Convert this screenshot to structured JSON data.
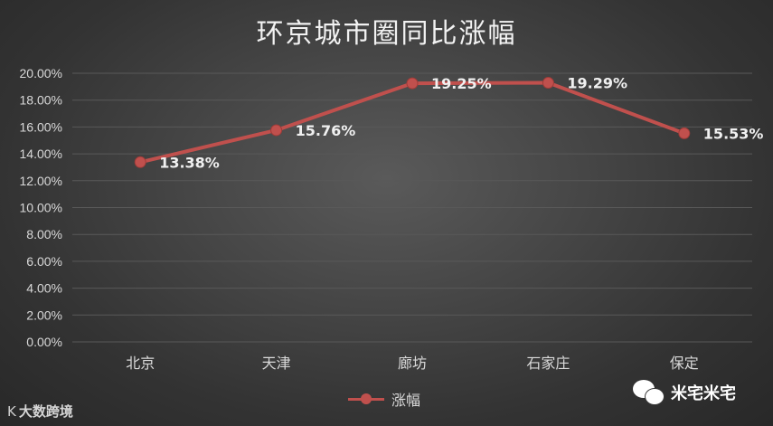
{
  "chart_data": {
    "type": "line",
    "title": "环京城市圈同比涨幅",
    "categories": [
      "北京",
      "天津",
      "廊坊",
      "石家庄",
      "保定"
    ],
    "series": [
      {
        "name": "涨幅",
        "values": [
          13.38,
          15.76,
          19.25,
          19.29,
          15.53
        ],
        "labels": [
          "13.38%",
          "15.76%",
          "19.25%",
          "19.29%",
          "15.53%"
        ],
        "color": "#c0504d"
      }
    ],
    "ylim": [
      0,
      20
    ],
    "yticks": [
      "0.00%",
      "2.00%",
      "4.00%",
      "6.00%",
      "8.00%",
      "10.00%",
      "12.00%",
      "14.00%",
      "16.00%",
      "18.00%",
      "20.00%"
    ],
    "xlabel": "",
    "ylabel": "",
    "grid": true,
    "legend": "bottom"
  },
  "watermarks": {
    "left_mark": "K",
    "left_text": "大数跨境",
    "right_text": "米宅米宅"
  },
  "colors": {
    "background": "#3e3e3e",
    "gridline": "#595959",
    "series": "#c0504d",
    "text": "#d9d9d9"
  }
}
